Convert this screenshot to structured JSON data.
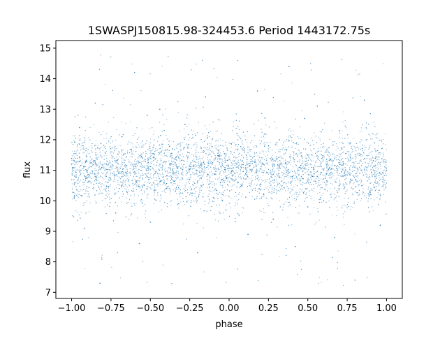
{
  "chart_data": {
    "type": "scatter",
    "title": "1SWASPJ150815.98-324453.6 Period 1443172.75s",
    "xlabel": "phase",
    "ylabel": "flux",
    "xlim": [
      -1.1,
      1.1
    ],
    "ylim": [
      6.8,
      15.25
    ],
    "xticks": [
      {
        "value": -1.0,
        "label": "−1.00"
      },
      {
        "value": -0.75,
        "label": "−0.75"
      },
      {
        "value": -0.5,
        "label": "−0.50"
      },
      {
        "value": -0.25,
        "label": "−0.25"
      },
      {
        "value": 0.0,
        "label": "0.00"
      },
      {
        "value": 0.25,
        "label": "0.25"
      },
      {
        "value": 0.5,
        "label": "0.50"
      },
      {
        "value": 0.75,
        "label": "0.75"
      },
      {
        "value": 1.0,
        "label": "1.00"
      }
    ],
    "yticks": [
      {
        "value": 7,
        "label": "7"
      },
      {
        "value": 8,
        "label": "8"
      },
      {
        "value": 9,
        "label": "9"
      },
      {
        "value": 10,
        "label": "10"
      },
      {
        "value": 11,
        "label": "11"
      },
      {
        "value": 12,
        "label": "12"
      },
      {
        "value": 13,
        "label": "13"
      },
      {
        "value": 14,
        "label": "14"
      },
      {
        "value": 15,
        "label": "15"
      }
    ],
    "grid": false,
    "point_color": "#1f77b4",
    "series": [
      {
        "phase_range": [
          -1.0,
          1.0
        ],
        "flux_core_center": 11.0,
        "flux_core_band": [
          10.2,
          11.8
        ],
        "flux_extremes": [
          7.2,
          14.8
        ],
        "points_sample": [
          [
            -1.0,
            11.2
          ],
          [
            -0.98,
            10.6
          ],
          [
            -0.95,
            12.4
          ],
          [
            -0.92,
            9.1
          ],
          [
            -0.9,
            11.0
          ],
          [
            -0.85,
            13.2
          ],
          [
            -0.82,
            7.3
          ],
          [
            -0.78,
            10.8
          ],
          [
            -0.75,
            11.6
          ],
          [
            -0.72,
            9.6
          ],
          [
            -0.68,
            12.1
          ],
          [
            -0.65,
            10.3
          ],
          [
            -0.6,
            14.2
          ],
          [
            -0.57,
            8.6
          ],
          [
            -0.55,
            11.4
          ],
          [
            -0.52,
            12.8
          ],
          [
            -0.5,
            9.3
          ],
          [
            -0.47,
            10.9
          ],
          [
            -0.44,
            13.0
          ],
          [
            -0.4,
            10.4
          ],
          [
            -0.36,
            11.7
          ],
          [
            -0.32,
            9.9
          ],
          [
            -0.28,
            12.5
          ],
          [
            -0.25,
            10.7
          ],
          [
            -0.2,
            8.3
          ],
          [
            -0.18,
            11.2
          ],
          [
            -0.15,
            13.4
          ],
          [
            -0.1,
            10.1
          ],
          [
            -0.06,
            11.5
          ],
          [
            -0.02,
            9.7
          ],
          [
            0.02,
            11.0
          ],
          [
            0.05,
            12.2
          ],
          [
            0.08,
            10.5
          ],
          [
            0.12,
            8.9
          ],
          [
            0.15,
            11.3
          ],
          [
            0.18,
            13.6
          ],
          [
            0.22,
            10.2
          ],
          [
            0.25,
            11.8
          ],
          [
            0.28,
            9.4
          ],
          [
            0.32,
            12.0
          ],
          [
            0.35,
            10.6
          ],
          [
            0.38,
            14.4
          ],
          [
            0.42,
            8.5
          ],
          [
            0.45,
            11.1
          ],
          [
            0.48,
            12.7
          ],
          [
            0.5,
            9.8
          ],
          [
            0.53,
            10.8
          ],
          [
            0.56,
            13.1
          ],
          [
            0.6,
            10.0
          ],
          [
            0.63,
            11.6
          ],
          [
            0.67,
            8.8
          ],
          [
            0.7,
            12.3
          ],
          [
            0.73,
            10.4
          ],
          [
            0.77,
            11.9
          ],
          [
            0.8,
            7.4
          ],
          [
            0.83,
            10.9
          ],
          [
            0.86,
            13.3
          ],
          [
            0.9,
            10.2
          ],
          [
            0.93,
            11.4
          ],
          [
            0.96,
            9.2
          ],
          [
            1.0,
            11.0
          ]
        ]
      }
    ]
  }
}
